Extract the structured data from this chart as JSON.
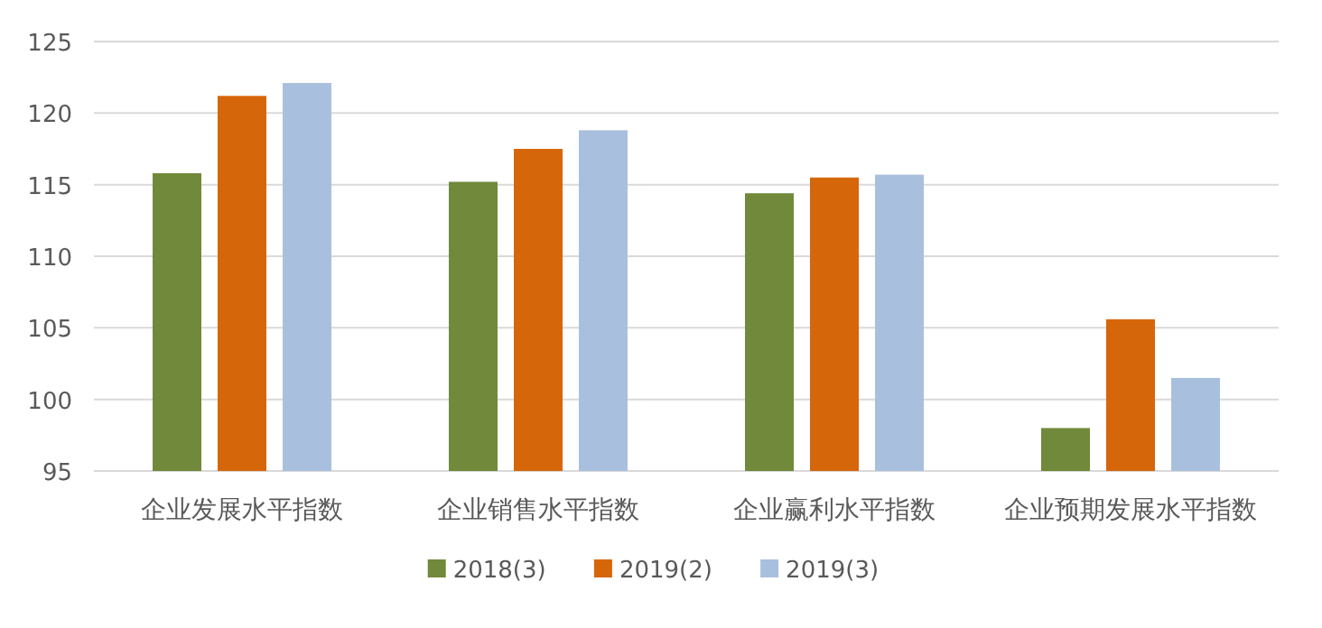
{
  "chart_data": {
    "type": "bar",
    "categories": [
      "企业发展水平指数",
      "企业销售水平指数",
      "企业赢利水平指数",
      "企业预期发展水平指数"
    ],
    "series": [
      {
        "name": "2018(3)",
        "color": "#71893a",
        "values": [
          115.8,
          115.2,
          114.4,
          98.0
        ]
      },
      {
        "name": "2019(2)",
        "color": "#d6660a",
        "values": [
          121.2,
          117.5,
          115.5,
          105.6
        ]
      },
      {
        "name": "2019(3)",
        "color": "#a8c0de",
        "values": [
          122.1,
          118.8,
          115.7,
          101.5
        ]
      }
    ],
    "ylim": [
      95,
      125
    ],
    "yticks": [
      95,
      100,
      105,
      110,
      115,
      120,
      125
    ],
    "grid": "y",
    "legend": "bottom"
  }
}
